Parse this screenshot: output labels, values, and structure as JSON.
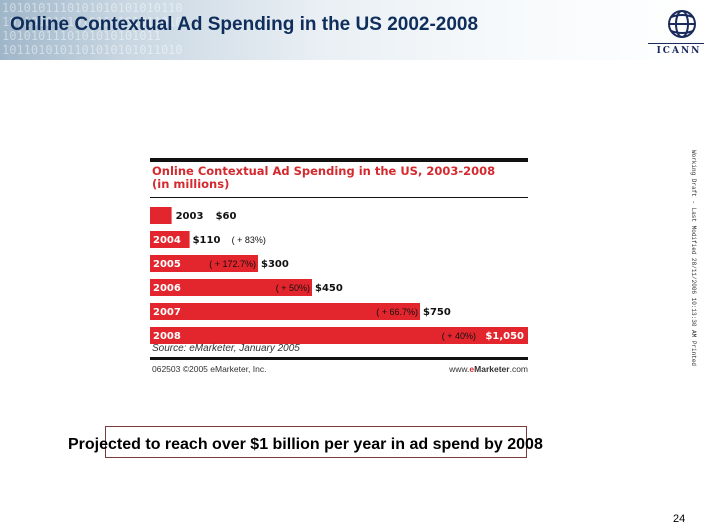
{
  "header": {
    "title": "Online Contextual Ad Spending in the US 2002-2008",
    "binary_rows": [
      "1010101110101010101010110",
      "1011010101010110101011010",
      "1010101110101010101011",
      "1011010101101010101011010"
    ],
    "logo_text": "ICANN"
  },
  "side_note": "Working Draft - Last Modified 28/11/2006 10:13:30 AM Printed",
  "chart_data": {
    "type": "bar",
    "orientation": "horizontal",
    "title": "Online Contextual Ad Spending in the US, 2003-2008",
    "subtitle": "(in millions)",
    "categories": [
      "2003",
      "2004",
      "2005",
      "2006",
      "2007",
      "2008"
    ],
    "values": [
      60,
      110,
      300,
      450,
      750,
      1050
    ],
    "value_labels": [
      "$60",
      "$110",
      "$300",
      "$450",
      "$750",
      "$1,050"
    ],
    "growth_labels": [
      "",
      "( + 83%)",
      "( + 172.7%)",
      "( + 50%)",
      "( + 66.7%)",
      "( + 40%)"
    ],
    "bar_color": "#e3262d",
    "xlim": [
      0,
      1050
    ],
    "grid": false,
    "xlabel": "",
    "ylabel": "",
    "source": "Source: eMarketer, January 2005",
    "copyright": "062503 ©2005 eMarketer, Inc.",
    "website": {
      "prefix": "www.",
      "e": "e",
      "m": "Marketer",
      "suffix": ".com"
    }
  },
  "caption": "Projected to reach over $1 billion per year in ad spend by 2008",
  "page_number": "24"
}
